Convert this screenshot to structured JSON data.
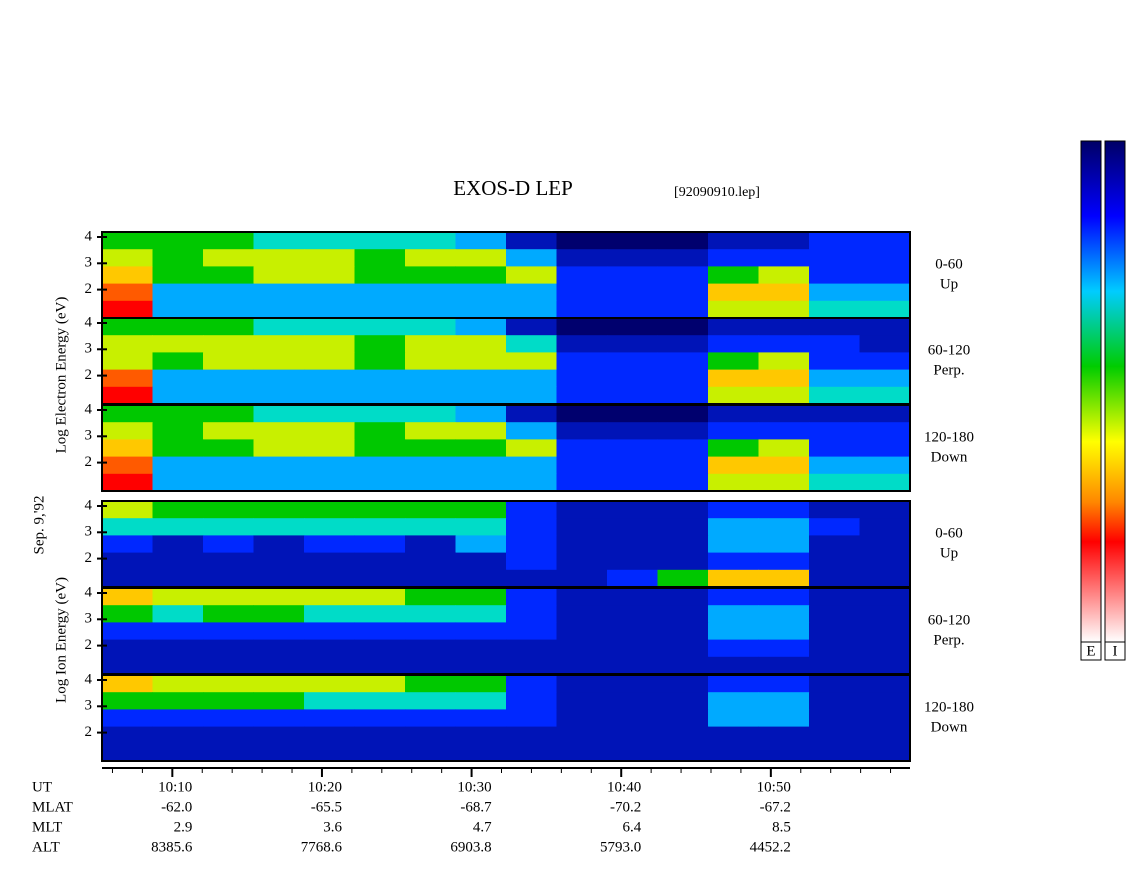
{
  "chart_data": {
    "type": "spectrogram",
    "title": "EXOS-D LEP",
    "subtitle": "[92090910.lep]",
    "date_label": "Sep. 9,'92",
    "electron_axis_label": "Log Electron Energy (eV)",
    "ion_axis_label": "Log Ion Energy (eV)",
    "colorbar_labels": [
      "E",
      "I"
    ],
    "xlim": [
      5.3,
      59.3
    ],
    "xticks": [
      {
        "value": 10,
        "label": "10:10"
      },
      {
        "value": 20,
        "label": "10:20"
      },
      {
        "value": 30,
        "label": "10:30"
      },
      {
        "value": 40,
        "label": "10:40"
      },
      {
        "value": 50,
        "label": "10:50"
      }
    ],
    "xminorticks": [
      6,
      8,
      12,
      14,
      16,
      18,
      22,
      24,
      26,
      28,
      32,
      34,
      36,
      38,
      42,
      44,
      46,
      48,
      52,
      54,
      56,
      58
    ],
    "ylim": [
      0.92,
      4.19
    ],
    "yticks": [
      2,
      3,
      4
    ],
    "panels": [
      {
        "label": [
          "0-60",
          "Up"
        ],
        "values": [
          [
            5,
            5,
            5,
            4,
            4,
            4,
            4,
            3,
            1,
            0,
            0,
            0,
            1,
            1,
            2,
            2
          ],
          [
            6,
            5,
            6,
            6,
            6,
            5,
            6,
            6,
            3,
            1,
            1,
            1,
            2,
            2,
            2,
            2
          ],
          [
            7,
            5,
            5,
            6,
            6,
            5,
            5,
            5,
            6,
            2,
            2,
            2,
            5,
            6,
            2,
            2
          ],
          [
            8,
            3,
            3,
            3,
            3,
            3,
            3,
            3,
            3,
            2,
            2,
            2,
            7,
            7,
            3,
            3
          ],
          [
            9,
            3,
            3,
            3,
            3,
            3,
            3,
            3,
            3,
            2,
            2,
            2,
            6,
            6,
            4,
            4
          ]
        ]
      },
      {
        "label": [
          "60-120",
          "Perp."
        ],
        "values": [
          [
            5,
            5,
            5,
            4,
            4,
            4,
            4,
            3,
            1,
            0,
            0,
            0,
            1,
            1,
            1,
            1
          ],
          [
            6,
            6,
            6,
            6,
            6,
            5,
            6,
            6,
            4,
            1,
            1,
            1,
            2,
            2,
            2,
            1
          ],
          [
            6,
            5,
            6,
            6,
            6,
            5,
            6,
            6,
            6,
            2,
            2,
            2,
            5,
            6,
            2,
            2
          ],
          [
            8,
            3,
            3,
            3,
            3,
            3,
            3,
            3,
            3,
            2,
            2,
            2,
            7,
            7,
            3,
            3
          ],
          [
            9,
            3,
            3,
            3,
            3,
            3,
            3,
            3,
            3,
            2,
            2,
            2,
            6,
            6,
            4,
            4
          ]
        ]
      },
      {
        "label": [
          "120-180",
          "Down"
        ],
        "values": [
          [
            5,
            5,
            5,
            4,
            4,
            4,
            4,
            3,
            1,
            0,
            0,
            0,
            1,
            1,
            1,
            1
          ],
          [
            6,
            5,
            6,
            6,
            6,
            5,
            6,
            6,
            3,
            1,
            1,
            1,
            2,
            2,
            2,
            2
          ],
          [
            7,
            5,
            5,
            6,
            6,
            5,
            5,
            5,
            6,
            2,
            2,
            2,
            5,
            6,
            2,
            2
          ],
          [
            8,
            3,
            3,
            3,
            3,
            3,
            3,
            3,
            3,
            2,
            2,
            2,
            7,
            7,
            3,
            3
          ],
          [
            9,
            3,
            3,
            3,
            3,
            3,
            3,
            3,
            3,
            2,
            2,
            2,
            6,
            6,
            4,
            4
          ]
        ]
      },
      {
        "label": [
          "0-60",
          "Up"
        ],
        "values": [
          [
            6,
            5,
            5,
            5,
            5,
            5,
            5,
            5,
            2,
            1,
            1,
            1,
            2,
            2,
            1,
            1
          ],
          [
            4,
            4,
            4,
            4,
            4,
            4,
            4,
            4,
            2,
            1,
            1,
            1,
            3,
            3,
            2,
            1
          ],
          [
            2,
            1,
            2,
            1,
            2,
            2,
            1,
            3,
            2,
            1,
            1,
            1,
            3,
            3,
            1,
            1
          ],
          [
            1,
            1,
            1,
            1,
            1,
            1,
            1,
            1,
            2,
            1,
            1,
            1,
            2,
            2,
            1,
            1
          ],
          [
            1,
            1,
            1,
            1,
            1,
            1,
            1,
            1,
            1,
            1,
            2,
            5,
            7,
            7,
            1,
            1
          ]
        ]
      },
      {
        "label": [
          "60-120",
          "Perp."
        ],
        "values": [
          [
            7,
            6,
            6,
            6,
            6,
            6,
            5,
            5,
            2,
            1,
            1,
            1,
            2,
            2,
            1,
            1
          ],
          [
            5,
            4,
            5,
            5,
            4,
            4,
            4,
            4,
            2,
            1,
            1,
            1,
            3,
            3,
            1,
            1
          ],
          [
            2,
            2,
            2,
            2,
            2,
            2,
            2,
            2,
            2,
            1,
            1,
            1,
            3,
            3,
            1,
            1
          ],
          [
            1,
            1,
            1,
            1,
            1,
            1,
            1,
            1,
            1,
            1,
            1,
            1,
            2,
            2,
            1,
            1
          ],
          [
            1,
            1,
            1,
            1,
            1,
            1,
            1,
            1,
            1,
            1,
            1,
            1,
            1,
            1,
            1,
            1
          ]
        ]
      },
      {
        "label": [
          "120-180",
          "Down"
        ],
        "values": [
          [
            7,
            6,
            6,
            6,
            6,
            6,
            5,
            5,
            2,
            1,
            1,
            1,
            2,
            2,
            1,
            1
          ],
          [
            5,
            5,
            5,
            5,
            4,
            4,
            4,
            4,
            2,
            1,
            1,
            1,
            3,
            3,
            1,
            1
          ],
          [
            2,
            2,
            2,
            2,
            2,
            2,
            2,
            2,
            2,
            1,
            1,
            1,
            3,
            3,
            1,
            1
          ],
          [
            1,
            1,
            1,
            1,
            1,
            1,
            1,
            1,
            1,
            1,
            1,
            1,
            1,
            1,
            1,
            1
          ],
          [
            1,
            1,
            1,
            1,
            1,
            1,
            1,
            1,
            1,
            1,
            1,
            1,
            1,
            1,
            1,
            1
          ]
        ]
      }
    ],
    "ephemeris": {
      "labels": [
        "UT",
        "MLAT",
        "MLT",
        "ALT"
      ],
      "rows": [
        [
          "-62.0",
          "-65.5",
          "-68.7",
          "-70.2",
          "-67.2"
        ],
        [
          "2.9",
          "3.6",
          "4.7",
          "6.4",
          "8.5"
        ],
        [
          "8385.6",
          "7768.6",
          "6903.8",
          "5793.0",
          "4452.2"
        ]
      ]
    }
  }
}
